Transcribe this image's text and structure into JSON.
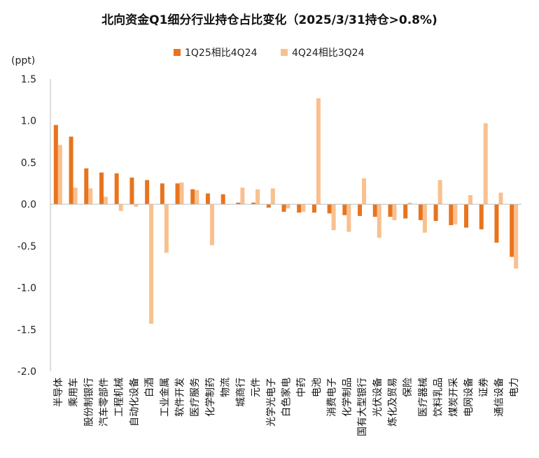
{
  "chart_data": {
    "type": "bar",
    "title": "北向资金Q1细分行业持仓占比变化（2025/3/31持仓>0.8%)",
    "ylabel": "(ppt)",
    "ylim": [
      -2.0,
      1.5
    ],
    "yticks": [
      "1.5",
      "1.0",
      "0.5",
      "0.0",
      "-0.5",
      "-1.0",
      "-1.5",
      "-2.0"
    ],
    "grid": false,
    "legend_position": "top-center",
    "categories": [
      "半导体",
      "乘用车",
      "股份制银行",
      "汽车零部件",
      "工程机械",
      "自动化设备",
      "白酒",
      "工业金属",
      "软件开发",
      "医疗服务",
      "化学制药",
      "物流",
      "城商行",
      "元件",
      "光学光电子",
      "白色家电",
      "中药",
      "电池",
      "消费电子",
      "化学制品",
      "国有大型银行",
      "光伏设备",
      "炼化及贸易",
      "保险",
      "医疗器械",
      "饮料乳品",
      "煤炭开采",
      "电网设备",
      "证券",
      "通信设备",
      "电力"
    ],
    "series": [
      {
        "name": "1Q25相比4Q24",
        "color": "#E8741E",
        "values": [
          0.95,
          0.81,
          0.43,
          0.38,
          0.37,
          0.32,
          0.29,
          0.25,
          0.25,
          0.18,
          0.13,
          0.12,
          0.02,
          0.02,
          -0.04,
          -0.09,
          -0.1,
          -0.1,
          -0.11,
          -0.13,
          -0.14,
          -0.15,
          -0.15,
          -0.17,
          -0.19,
          -0.2,
          -0.25,
          -0.28,
          -0.3,
          -0.46,
          -0.63
        ]
      },
      {
        "name": "4Q24相比3Q24",
        "color": "#F9C08E",
        "values": [
          0.71,
          0.2,
          0.19,
          0.09,
          -0.08,
          -0.03,
          -1.43,
          -0.58,
          0.26,
          0.17,
          -0.49,
          0.0,
          0.2,
          0.18,
          0.19,
          -0.05,
          -0.09,
          1.27,
          -0.31,
          -0.33,
          0.31,
          -0.4,
          -0.19,
          0.02,
          -0.34,
          0.29,
          -0.24,
          0.11,
          0.97,
          0.14,
          -0.77
        ]
      }
    ]
  }
}
